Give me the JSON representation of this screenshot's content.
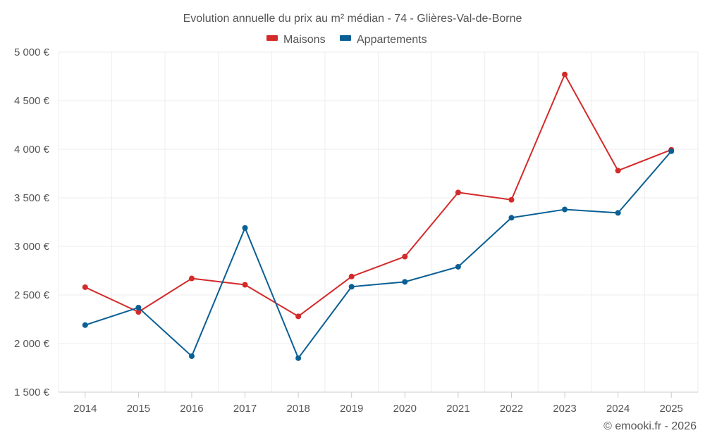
{
  "chart_data": {
    "type": "line",
    "title": "Evolution annuelle du prix au m² médian - 74 - Glières-Val-de-Borne",
    "categories": [
      "2014",
      "2015",
      "2016",
      "2017",
      "2018",
      "2019",
      "2020",
      "2021",
      "2022",
      "2023",
      "2024",
      "2025"
    ],
    "series": [
      {
        "name": "Maisons",
        "color": "#d42a2a",
        "values": [
          2580,
          2325,
          2670,
          2605,
          2280,
          2690,
          2895,
          3555,
          3480,
          4770,
          3780,
          3995
        ]
      },
      {
        "name": "Appartements",
        "color": "#0a5f94",
        "values": [
          2190,
          2370,
          1870,
          3190,
          1850,
          2585,
          2635,
          2790,
          3295,
          3380,
          3345,
          3980
        ]
      }
    ],
    "y_ticks": [
      1500,
      2000,
      2500,
      3000,
      3500,
      4000,
      4500,
      5000
    ],
    "y_tick_labels": [
      "1 500 €",
      "2 000 €",
      "2 500 €",
      "3 000 €",
      "3 500 €",
      "4 000 €",
      "4 500 €",
      "5 000 €"
    ],
    "ylim": [
      1500,
      5000
    ],
    "xlabel": "",
    "ylabel": "",
    "grid": true,
    "legend_position": "top-center"
  },
  "credit": "© emooki.fr - 2026"
}
